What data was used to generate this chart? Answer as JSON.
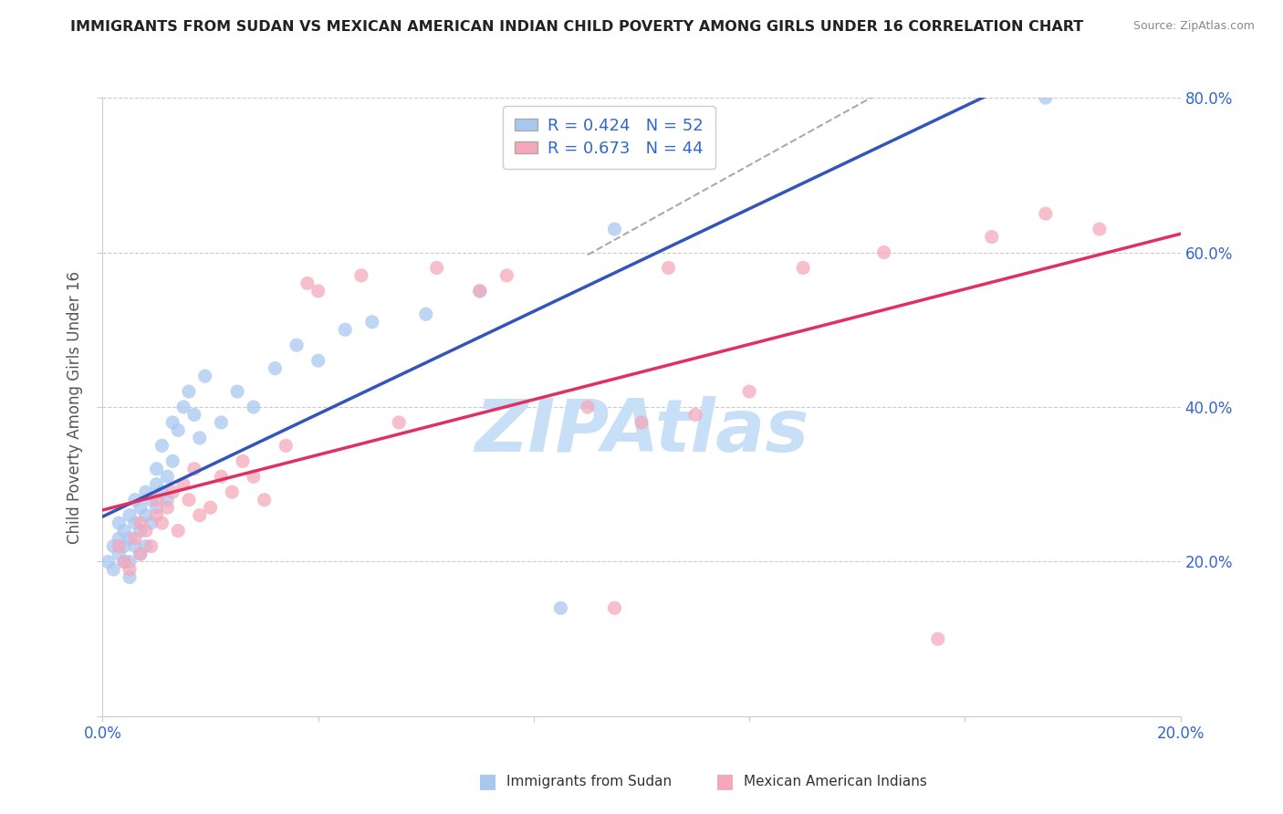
{
  "title": "IMMIGRANTS FROM SUDAN VS MEXICAN AMERICAN INDIAN CHILD POVERTY AMONG GIRLS UNDER 16 CORRELATION CHART",
  "source": "Source: ZipAtlas.com",
  "ylabel_label": "Child Poverty Among Girls Under 16",
  "legend_blue_label": "Immigrants from Sudan",
  "legend_pink_label": "Mexican American Indians",
  "r_blue": 0.424,
  "n_blue": 52,
  "r_pink": 0.673,
  "n_pink": 44,
  "blue_color": "#A8C8F0",
  "pink_color": "#F5A8BC",
  "blue_line_color": "#3355BB",
  "pink_line_color": "#E03060",
  "dash_color": "#AAAAAA",
  "watermark_color": "#C8DFF8",
  "xlim": [
    0.0,
    0.2
  ],
  "ylim": [
    0.0,
    0.8
  ],
  "blue_scatter_x": [
    0.001,
    0.002,
    0.002,
    0.003,
    0.003,
    0.003,
    0.004,
    0.004,
    0.004,
    0.005,
    0.005,
    0.005,
    0.005,
    0.006,
    0.006,
    0.006,
    0.007,
    0.007,
    0.007,
    0.008,
    0.008,
    0.008,
    0.009,
    0.009,
    0.01,
    0.01,
    0.01,
    0.011,
    0.011,
    0.012,
    0.012,
    0.013,
    0.013,
    0.014,
    0.015,
    0.016,
    0.017,
    0.018,
    0.019,
    0.022,
    0.025,
    0.028,
    0.032,
    0.036,
    0.04,
    0.045,
    0.05,
    0.06,
    0.07,
    0.085,
    0.095,
    0.175
  ],
  "blue_scatter_y": [
    0.2,
    0.22,
    0.19,
    0.21,
    0.23,
    0.25,
    0.2,
    0.22,
    0.24,
    0.18,
    0.2,
    0.23,
    0.26,
    0.22,
    0.25,
    0.28,
    0.24,
    0.21,
    0.27,
    0.26,
    0.22,
    0.29,
    0.25,
    0.28,
    0.3,
    0.27,
    0.32,
    0.29,
    0.35,
    0.31,
    0.28,
    0.33,
    0.38,
    0.37,
    0.4,
    0.42,
    0.39,
    0.36,
    0.44,
    0.38,
    0.42,
    0.4,
    0.45,
    0.48,
    0.46,
    0.5,
    0.51,
    0.52,
    0.55,
    0.14,
    0.63,
    0.8
  ],
  "pink_scatter_x": [
    0.003,
    0.004,
    0.005,
    0.006,
    0.007,
    0.007,
    0.008,
    0.009,
    0.01,
    0.01,
    0.011,
    0.012,
    0.013,
    0.014,
    0.015,
    0.016,
    0.017,
    0.018,
    0.02,
    0.022,
    0.024,
    0.026,
    0.028,
    0.03,
    0.034,
    0.038,
    0.04,
    0.048,
    0.055,
    0.062,
    0.07,
    0.075,
    0.09,
    0.095,
    0.105,
    0.12,
    0.13,
    0.145,
    0.155,
    0.165,
    0.175,
    0.185,
    0.11,
    0.1
  ],
  "pink_scatter_y": [
    0.22,
    0.2,
    0.19,
    0.23,
    0.21,
    0.25,
    0.24,
    0.22,
    0.26,
    0.28,
    0.25,
    0.27,
    0.29,
    0.24,
    0.3,
    0.28,
    0.32,
    0.26,
    0.27,
    0.31,
    0.29,
    0.33,
    0.31,
    0.28,
    0.35,
    0.56,
    0.55,
    0.57,
    0.38,
    0.58,
    0.55,
    0.57,
    0.4,
    0.14,
    0.58,
    0.42,
    0.58,
    0.6,
    0.1,
    0.62,
    0.65,
    0.63,
    0.39,
    0.38
  ]
}
